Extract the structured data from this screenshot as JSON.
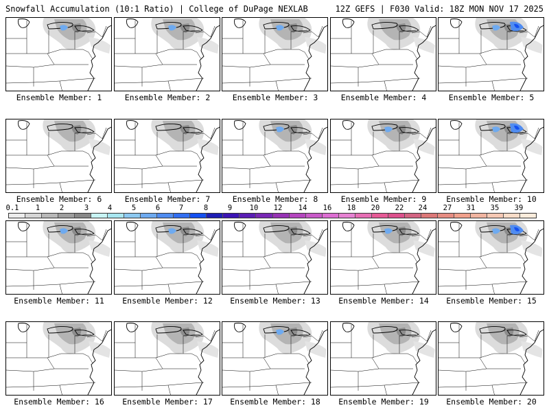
{
  "header": {
    "title": "Snowfall Accumulation (10:1 Ratio) | College of DuPage NEXLAB",
    "run_info": "12Z GEFS | F030 Valid: 18Z MON NOV 17 2025"
  },
  "legend": {
    "labels": [
      "0.1",
      "1",
      "2",
      "3",
      "4",
      "5",
      "6",
      "7",
      "8",
      "9",
      "10",
      "12",
      "14",
      "16",
      "18",
      "20",
      "22",
      "24",
      "27",
      "31",
      "35",
      "39"
    ],
    "colors": [
      "#ececec",
      "#d6d6d6",
      "#b8b8b8",
      "#9e9e9e",
      "#888888",
      "#c8f4f4",
      "#a8e6f0",
      "#8cc8f0",
      "#6eaaf0",
      "#508cf0",
      "#326ef0",
      "#1450f0",
      "#1e1eb4",
      "#3c14b4",
      "#5a1eb4",
      "#7828b4",
      "#9632b4",
      "#b446be",
      "#c85ac8",
      "#dc6ed2",
      "#e682d2",
      "#e66eb4",
      "#e65a96",
      "#dc508c",
      "#d26482",
      "#dc7878",
      "#e68c82",
      "#f0a08c",
      "#f0b4a0",
      "#f5c8b4",
      "#f8dcc8",
      "#fcecdc"
    ]
  },
  "members": [
    {
      "label": "Ensemble Member: 1",
      "blue": 1
    },
    {
      "label": "Ensemble Member: 2",
      "blue": 1
    },
    {
      "label": "Ensemble Member: 3",
      "blue": 1
    },
    {
      "label": "Ensemble Member: 4",
      "blue": 0
    },
    {
      "label": "Ensemble Member: 5",
      "blue": 2
    },
    {
      "label": "Ensemble Member: 6",
      "blue": 0
    },
    {
      "label": "Ensemble Member: 7",
      "blue": 0
    },
    {
      "label": "Ensemble Member: 8",
      "blue": 1
    },
    {
      "label": "Ensemble Member: 9",
      "blue": 1
    },
    {
      "label": "Ensemble Member: 10",
      "blue": 2
    },
    {
      "label": "Ensemble Member: 11",
      "blue": 1
    },
    {
      "label": "Ensemble Member: 12",
      "blue": 1
    },
    {
      "label": "Ensemble Member: 13",
      "blue": 0
    },
    {
      "label": "Ensemble Member: 14",
      "blue": 1
    },
    {
      "label": "Ensemble Member: 15",
      "blue": 2
    },
    {
      "label": "Ensemble Member: 16",
      "blue": 0
    },
    {
      "label": "Ensemble Member: 17",
      "blue": 0
    },
    {
      "label": "Ensemble Member: 18",
      "blue": 1
    },
    {
      "label": "Ensemble Member: 19",
      "blue": 0
    },
    {
      "label": "Ensemble Member: 20",
      "blue": 0
    }
  ]
}
